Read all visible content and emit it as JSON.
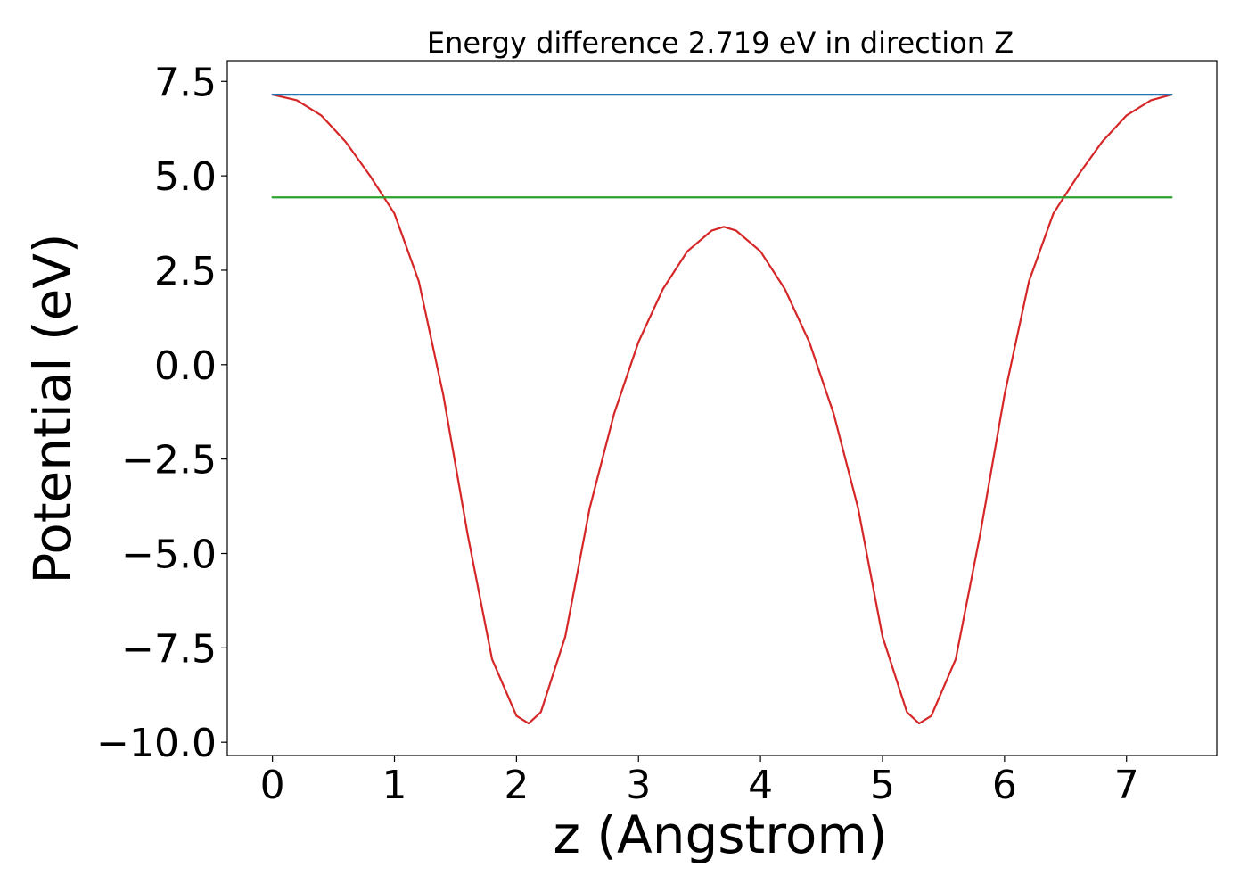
{
  "chart_data": {
    "type": "line",
    "title": "Energy difference 2.719 eV in direction Z",
    "xlabel": "z (Angstrom)",
    "ylabel": "Potential (eV)",
    "xlim": [
      -0.37,
      7.74
    ],
    "ylim": [
      -10.35,
      8.05
    ],
    "xticks": [
      0,
      1,
      2,
      3,
      4,
      5,
      6,
      7
    ],
    "yticks": [
      -10.0,
      -7.5,
      -5.0,
      -2.5,
      0.0,
      2.5,
      5.0,
      7.5
    ],
    "ytick_labels": [
      "−10.0",
      "−7.5",
      "−5.0",
      "−2.5",
      "0.0",
      "2.5",
      "5.0",
      "7.5"
    ],
    "xtick_labels": [
      "0",
      "1",
      "2",
      "3",
      "4",
      "5",
      "6",
      "7"
    ],
    "grid": false,
    "series": [
      {
        "color": "#d62728",
        "x": [
          0.0,
          0.2,
          0.4,
          0.6,
          0.8,
          1.0,
          1.2,
          1.4,
          1.6,
          1.8,
          2.0,
          2.1,
          2.2,
          2.4,
          2.6,
          2.8,
          3.0,
          3.2,
          3.4,
          3.6,
          3.7,
          3.8,
          4.0,
          4.2,
          4.4,
          4.6,
          4.8,
          5.0,
          5.2,
          5.3,
          5.4,
          5.6,
          5.8,
          6.0,
          6.2,
          6.4,
          6.6,
          6.8,
          7.0,
          7.2,
          7.37
        ],
        "y": [
          7.15,
          7.0,
          6.6,
          5.9,
          5.0,
          4.0,
          2.2,
          -0.8,
          -4.5,
          -7.8,
          -9.3,
          -9.5,
          -9.2,
          -7.2,
          -3.8,
          -1.3,
          0.6,
          2.0,
          3.0,
          3.55,
          3.65,
          3.55,
          3.0,
          2.0,
          0.6,
          -1.3,
          -3.8,
          -7.2,
          -9.2,
          -9.5,
          -9.3,
          -7.8,
          -4.5,
          -0.8,
          2.2,
          4.0,
          5.0,
          5.9,
          6.6,
          7.0,
          7.15
        ]
      },
      {
        "color": "#1f77b4",
        "x": [
          0.0,
          7.37
        ],
        "y": [
          7.15,
          7.15
        ]
      },
      {
        "color": "#2ca02c",
        "x": [
          0.0,
          7.37
        ],
        "y": [
          4.43,
          4.43
        ]
      }
    ]
  }
}
